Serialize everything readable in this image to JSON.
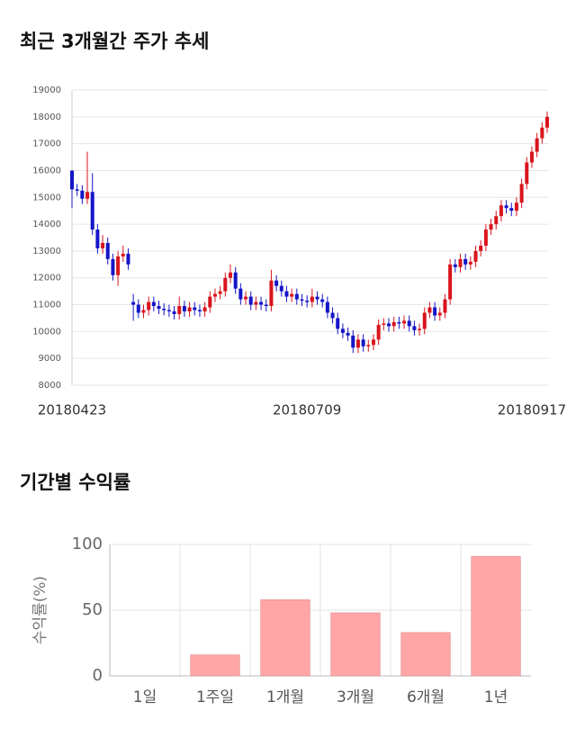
{
  "chart_data": [
    {
      "type": "candlestick",
      "title": "최근 3개월간 주가 추세",
      "categories": [
        "20180423",
        null,
        null,
        null,
        null,
        null,
        null,
        null,
        null,
        null,
        null,
        null,
        null,
        null,
        null,
        null,
        null,
        null,
        null,
        null,
        null,
        null,
        null,
        null,
        null,
        null,
        null,
        null,
        null,
        null,
        null,
        null,
        null,
        null,
        null,
        null,
        null,
        null,
        null,
        null,
        null,
        null,
        null,
        null,
        null,
        null,
        "20180709",
        null,
        null,
        null,
        null,
        null,
        null,
        null,
        null,
        null,
        null,
        null,
        null,
        null,
        null,
        null,
        null,
        null,
        null,
        null,
        null,
        null,
        null,
        null,
        null,
        null,
        null,
        null,
        null,
        null,
        null,
        null,
        null,
        null,
        null,
        null,
        null,
        null,
        null,
        null,
        null,
        null,
        null,
        null,
        "20180917",
        null,
        null,
        null
      ],
      "open": [
        16000,
        15300,
        15250,
        14950,
        15200,
        13800,
        13100,
        13300,
        12700,
        12100,
        12800,
        12900,
        11100,
        11000,
        10700,
        10800,
        11100,
        10950,
        10850,
        10800,
        10750,
        10650,
        10950,
        10750,
        10900,
        10800,
        10750,
        10900,
        11300,
        11400,
        11500,
        12000,
        12200,
        11600,
        11200,
        11300,
        11000,
        11100,
        11000,
        10950,
        11900,
        11700,
        11500,
        11300,
        11400,
        11200,
        11150,
        11100,
        11300,
        11200,
        11100,
        10700,
        10500,
        10100,
        9950,
        9850,
        9400,
        9700,
        9450,
        9500,
        9700,
        10250,
        10300,
        10200,
        10350,
        10300,
        10400,
        10200,
        10050,
        10100,
        10700,
        10900,
        10600,
        10700,
        11200,
        12500,
        12400,
        12700,
        12500,
        12600,
        13000,
        13200,
        13800,
        14000,
        14300,
        14700,
        14600,
        14500,
        14800,
        15500,
        16300,
        16700,
        17200,
        17600
      ],
      "high": [
        16000,
        15500,
        15450,
        16700,
        15900,
        14000,
        13600,
        13500,
        12900,
        13000,
        13200,
        13100,
        11400,
        11200,
        11000,
        11300,
        11300,
        11150,
        11050,
        11000,
        10950,
        11300,
        11150,
        11100,
        11100,
        11000,
        11100,
        11500,
        11600,
        11700,
        12200,
        12500,
        12400,
        11800,
        11500,
        11500,
        11300,
        11300,
        11200,
        12300,
        12100,
        11900,
        11700,
        11600,
        11600,
        11400,
        11350,
        11600,
        11500,
        11400,
        11300,
        10900,
        10700,
        10300,
        10150,
        10050,
        9900,
        9900,
        9700,
        9900,
        10450,
        10500,
        10500,
        10550,
        10550,
        10600,
        10600,
        10400,
        10300,
        10900,
        11100,
        11100,
        10900,
        11400,
        12700,
        12700,
        12900,
        12900,
        12800,
        13200,
        13400,
        14000,
        14200,
        14500,
        14900,
        14900,
        14800,
        15000,
        15700,
        16500,
        16900,
        17400,
        17800,
        18200
      ],
      "low": [
        14600,
        15050,
        14750,
        14750,
        13600,
        12900,
        12900,
        12500,
        11900,
        11700,
        12600,
        12300,
        10400,
        10500,
        10500,
        10600,
        10750,
        10650,
        10600,
        10550,
        10450,
        10450,
        10550,
        10550,
        10600,
        10550,
        10550,
        10700,
        11100,
        11200,
        11300,
        11800,
        11400,
        11000,
        11000,
        10800,
        10800,
        10800,
        10750,
        10750,
        11500,
        11300,
        11100,
        11100,
        11000,
        10950,
        10900,
        10900,
        11000,
        10900,
        10500,
        10300,
        9900,
        9750,
        9650,
        9200,
        9200,
        9250,
        9250,
        9300,
        9500,
        10050,
        10000,
        10000,
        10100,
        10100,
        10000,
        9850,
        9850,
        9900,
        10500,
        10400,
        10400,
        10500,
        11000,
        12200,
        12200,
        12300,
        12300,
        12400,
        12800,
        13000,
        13600,
        13800,
        14100,
        14400,
        14300,
        14300,
        14600,
        15300,
        16100,
        16500,
        17000,
        17400
      ],
      "close": [
        15300,
        15250,
        14950,
        15200,
        13800,
        13100,
        13300,
        12700,
        12100,
        12800,
        12900,
        12500,
        11000,
        10700,
        10800,
        11100,
        10950,
        10850,
        10800,
        10750,
        10650,
        10950,
        10750,
        10900,
        10800,
        10750,
        10900,
        11300,
        11400,
        11500,
        12000,
        12200,
        11600,
        11200,
        11300,
        11000,
        11100,
        11000,
        10950,
        11900,
        11700,
        11500,
        11300,
        11400,
        11200,
        11150,
        11100,
        11300,
        11200,
        11100,
        10700,
        10500,
        10100,
        9950,
        9850,
        9400,
        9700,
        9450,
        9500,
        9700,
        10250,
        10300,
        10200,
        10350,
        10300,
        10400,
        10200,
        10050,
        10100,
        10700,
        10900,
        10600,
        10700,
        11200,
        12500,
        12400,
        12700,
        12500,
        12600,
        13000,
        13200,
        13800,
        14000,
        14300,
        14700,
        14600,
        14500,
        14800,
        15500,
        16300,
        16700,
        17200,
        17600,
        18000
      ],
      "up_color": "#d9141c",
      "down_color": "#1414c8",
      "ylim": [
        8000,
        19000
      ],
      "yticks": [
        8000,
        9000,
        10000,
        11000,
        12000,
        13000,
        14000,
        15000,
        16000,
        17000,
        18000,
        19000
      ],
      "grid": true
    },
    {
      "type": "bar",
      "title": "기간별 수익률",
      "y_label": "수익률(%)",
      "categories": [
        "1일",
        "1주일",
        "1개월",
        "3개월",
        "6개월",
        "1년"
      ],
      "values": [
        0,
        16,
        58,
        48,
        33,
        91
      ],
      "color": "#ffa5a5",
      "ylim": [
        0,
        100
      ],
      "yticks": [
        0,
        50,
        100
      ],
      "grid": true
    }
  ]
}
